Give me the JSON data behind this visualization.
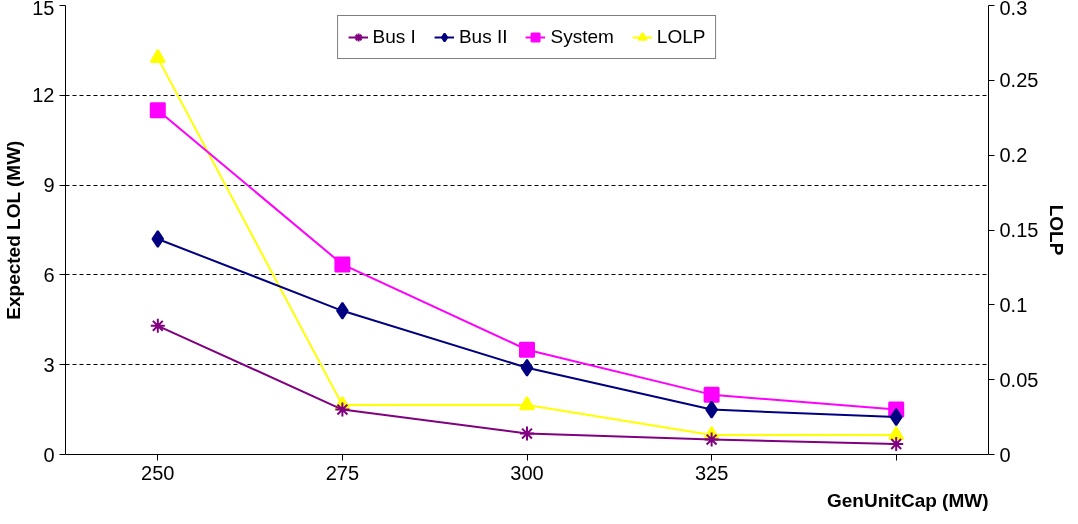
{
  "chart_data": {
    "type": "line",
    "xlabel": "GenUnitCap (MW)",
    "ylabel": "Expected LOL (MW)",
    "y2label": "LOLP",
    "categories": [
      "250",
      "275",
      "300",
      "325",
      null
    ],
    "series": [
      {
        "name": "Bus I",
        "color": "#800080",
        "marker": "cross",
        "values": [
          4.3,
          1.5,
          0.7,
          0.5,
          0.35
        ]
      },
      {
        "name": "Bus II",
        "color": "#000080",
        "marker": "diamond",
        "values": [
          7.2,
          4.8,
          2.9,
          1.5,
          1.25
        ]
      },
      {
        "name": "System",
        "color": "#ff00ff",
        "marker": "square",
        "values": [
          11.5,
          6.35,
          3.5,
          2.0,
          1.5
        ]
      },
      {
        "name": "LOLP",
        "color": "#ffff00",
        "marker": "triangle",
        "axis": "y2",
        "values": [
          0.265,
          0.033,
          0.033,
          0.013,
          0.013
        ]
      }
    ],
    "ylim": [
      0,
      15
    ],
    "yticks": [
      0,
      3,
      6,
      9,
      12,
      15
    ],
    "y2lim": [
      0,
      0.3
    ],
    "y2ticks": [
      0,
      0.05,
      0.1,
      0.15,
      0.2,
      0.25,
      0.3
    ],
    "grid": "y",
    "legend": "top",
    "line_style": "solid"
  }
}
